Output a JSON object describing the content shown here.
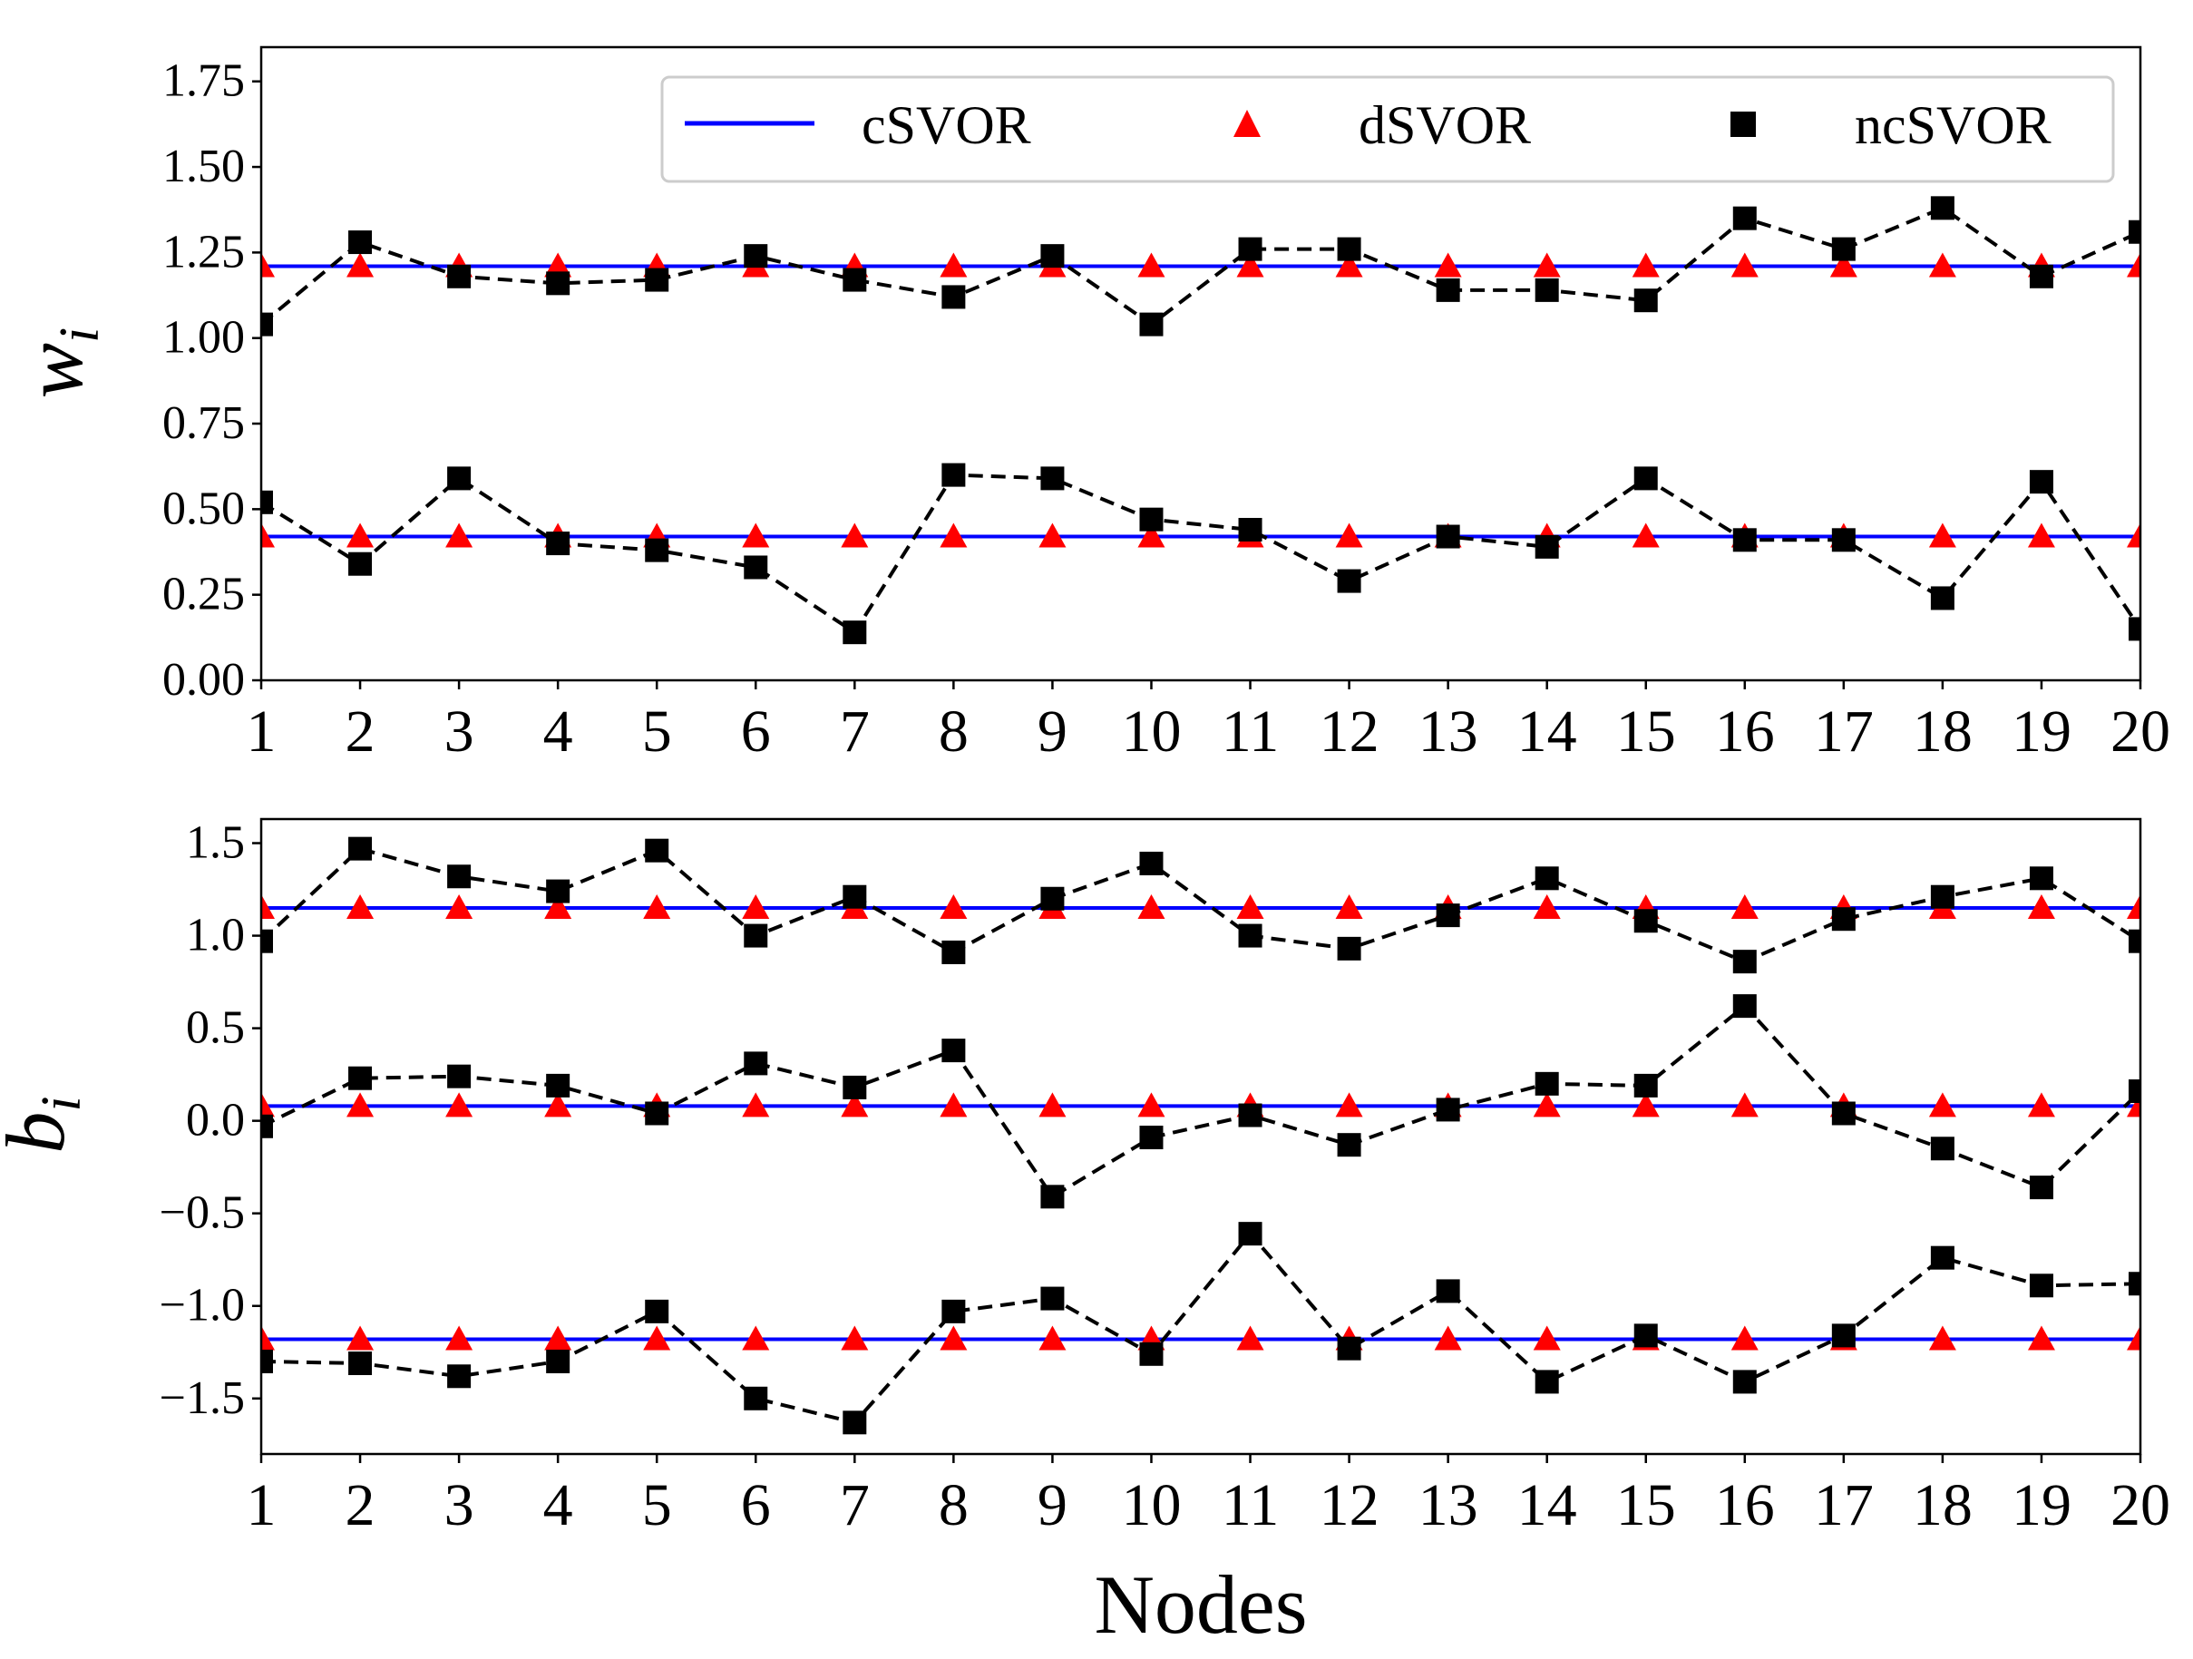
{
  "chart_data": [
    {
      "type": "line",
      "ylabel": "w",
      "ylabel_sub": "i",
      "xlabel": "",
      "x": [
        1,
        2,
        3,
        4,
        5,
        6,
        7,
        8,
        9,
        10,
        11,
        12,
        13,
        14,
        15,
        16,
        17,
        18,
        19,
        20
      ],
      "xticks": [
        "1",
        "2",
        "3",
        "4",
        "5",
        "6",
        "7",
        "8",
        "9",
        "10",
        "11",
        "12",
        "13",
        "14",
        "15",
        "16",
        "17",
        "18",
        "19",
        "20"
      ],
      "ylim": [
        0,
        1.85
      ],
      "yticks": [
        0.0,
        0.25,
        0.5,
        0.75,
        1.0,
        1.25,
        1.5,
        1.75
      ],
      "ytick_labels": [
        "0.00",
        "0.25",
        "0.50",
        "0.75",
        "1.00",
        "1.25",
        "1.50",
        "1.75"
      ],
      "legend_position": "top-right",
      "legend": [
        "cSVOR",
        "dSVOR",
        "ncSVOR"
      ],
      "colors": {
        "cSVOR": "#0000ff",
        "dSVOR": "#ff0000",
        "ncSVOR": "#000000"
      },
      "csvor": [
        1.21,
        0.42
      ],
      "dsvor": [
        1.21,
        0.42
      ],
      "ncsvor": [
        [
          1.04,
          1.28,
          1.18,
          1.16,
          1.17,
          1.24,
          1.17,
          1.12,
          1.24,
          1.04,
          1.26,
          1.26,
          1.14,
          1.14,
          1.11,
          1.35,
          1.26,
          1.38,
          1.18,
          1.31
        ],
        [
          0.52,
          0.34,
          0.59,
          0.4,
          0.38,
          0.33,
          0.14,
          0.6,
          0.59,
          0.47,
          0.44,
          0.29,
          0.42,
          0.39,
          0.59,
          0.41,
          0.41,
          0.24,
          0.58,
          0.15
        ]
      ]
    },
    {
      "type": "line",
      "ylabel": "b",
      "ylabel_sub": "i",
      "xlabel": "Nodes",
      "x": [
        1,
        2,
        3,
        4,
        5,
        6,
        7,
        8,
        9,
        10,
        11,
        12,
        13,
        14,
        15,
        16,
        17,
        18,
        19,
        20
      ],
      "xticks": [
        "1",
        "2",
        "3",
        "4",
        "5",
        "6",
        "7",
        "8",
        "9",
        "10",
        "11",
        "12",
        "13",
        "14",
        "15",
        "16",
        "17",
        "18",
        "19",
        "20"
      ],
      "ylim": [
        -1.8,
        1.63
      ],
      "yticks": [
        -1.5,
        -1.0,
        -0.5,
        0.0,
        0.5,
        1.0,
        1.5
      ],
      "ytick_labels": [
        "−1.5",
        "−1.0",
        "−0.5",
        "0.0",
        "0.5",
        "1.0",
        "1.5"
      ],
      "colors": {
        "cSVOR": "#0000ff",
        "dSVOR": "#ff0000",
        "ncSVOR": "#000000"
      },
      "csvor": [
        1.15,
        0.08,
        -1.18
      ],
      "dsvor": [
        1.15,
        0.08,
        -1.18
      ],
      "ncsvor": [
        [
          0.97,
          1.47,
          1.32,
          1.24,
          1.46,
          1.0,
          1.21,
          0.91,
          1.2,
          1.39,
          1.0,
          0.93,
          1.11,
          1.31,
          1.08,
          0.86,
          1.09,
          1.21,
          1.31,
          0.97
        ],
        [
          -0.03,
          0.23,
          0.24,
          0.19,
          0.04,
          0.31,
          0.18,
          0.38,
          -0.41,
          -0.09,
          0.03,
          -0.13,
          0.06,
          0.2,
          0.19,
          0.62,
          0.04,
          -0.15,
          -0.36,
          0.16
        ],
        [
          -1.3,
          -1.31,
          -1.38,
          -1.3,
          -1.03,
          -1.5,
          -1.63,
          -1.03,
          -0.96,
          -1.26,
          -0.61,
          -1.23,
          -0.92,
          -1.41,
          -1.16,
          -1.41,
          -1.16,
          -0.74,
          -0.89,
          -0.88
        ]
      ]
    }
  ]
}
